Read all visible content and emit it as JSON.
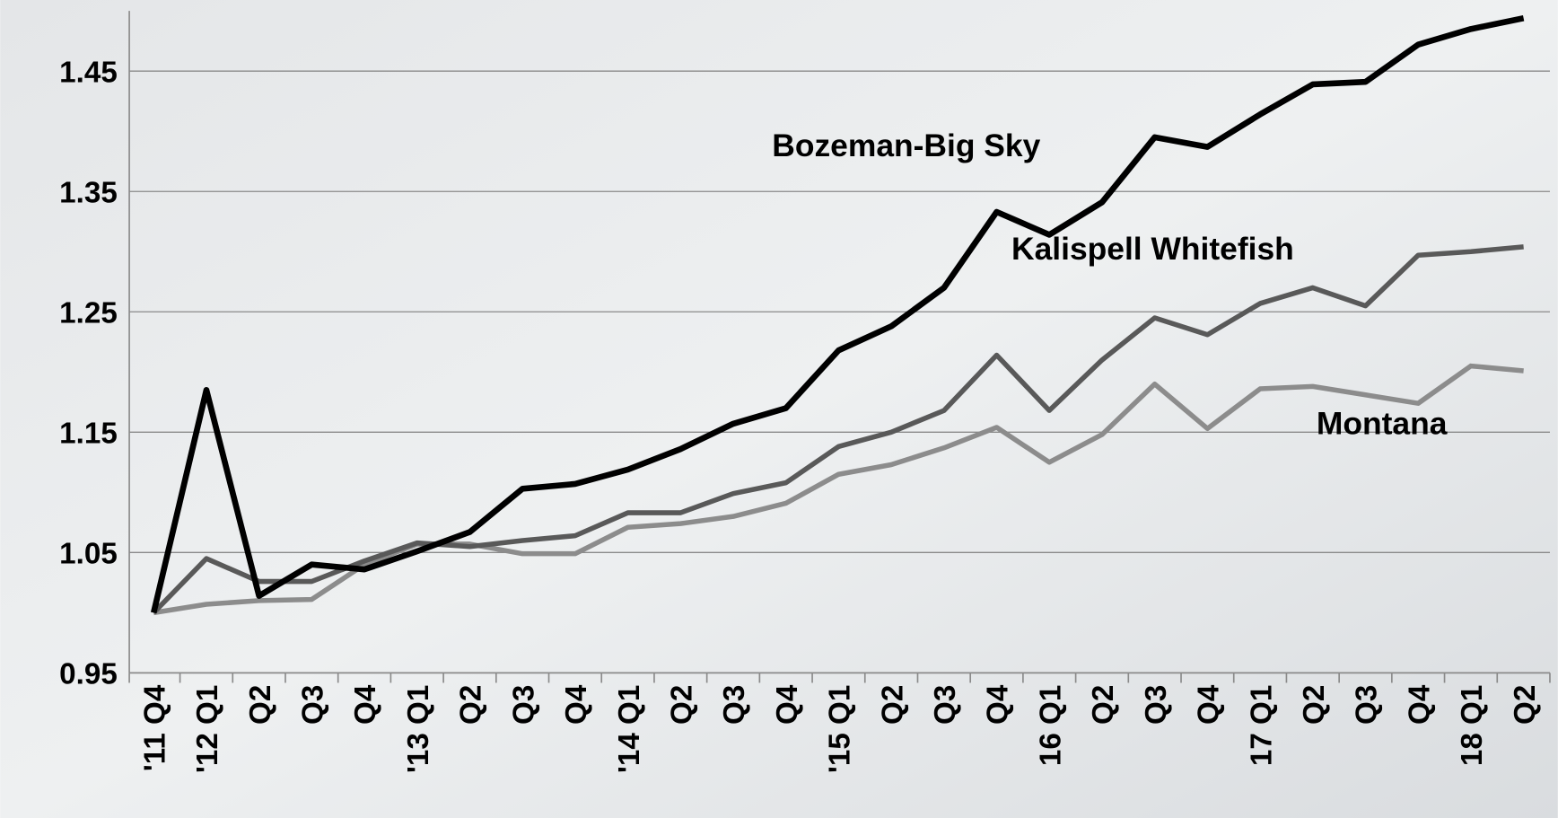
{
  "chart_data": {
    "type": "line",
    "categories": [
      "'11 Q4",
      "'12 Q1",
      "Q2",
      "Q3",
      "Q4",
      "'13 Q1",
      "Q2",
      "Q3",
      "Q4",
      "'14 Q1",
      "Q2",
      "Q3",
      "Q4",
      "'15 Q1",
      "Q2",
      "Q3",
      "Q4",
      "16 Q1",
      "Q2",
      "Q3",
      "Q4",
      "17 Q1",
      "Q2",
      "Q3",
      "Q4",
      "18 Q1",
      "Q2"
    ],
    "series": [
      {
        "name": "Bozeman-Big Sky",
        "color": "#000000",
        "values": [
          1.0,
          1.185,
          1.014,
          1.04,
          1.036,
          1.051,
          1.067,
          1.103,
          1.107,
          1.119,
          1.136,
          1.157,
          1.17,
          1.218,
          1.238,
          1.27,
          1.333,
          1.314,
          1.341,
          1.395,
          1.387,
          1.414,
          1.439,
          1.441,
          1.472,
          1.485,
          1.494
        ]
      },
      {
        "name": "Kalispell Whitefish",
        "color": "#595959",
        "values": [
          1.0,
          1.045,
          1.026,
          1.026,
          1.043,
          1.058,
          1.055,
          1.06,
          1.064,
          1.083,
          1.083,
          1.099,
          1.108,
          1.138,
          1.15,
          1.168,
          1.214,
          1.168,
          1.21,
          1.245,
          1.231,
          1.257,
          1.27,
          1.255,
          1.297,
          1.3,
          1.304
        ]
      },
      {
        "name": "Montana",
        "color": "#8c8c8c",
        "values": [
          1.0,
          1.007,
          1.01,
          1.011,
          1.04,
          1.057,
          1.057,
          1.049,
          1.049,
          1.071,
          1.074,
          1.08,
          1.091,
          1.115,
          1.123,
          1.137,
          1.154,
          1.125,
          1.148,
          1.19,
          1.153,
          1.186,
          1.188,
          1.181,
          1.174,
          1.205,
          1.201
        ]
      }
    ],
    "ylim": [
      0.95,
      1.5
    ],
    "yticks": [
      0.95,
      1.05,
      1.15,
      1.25,
      1.35,
      1.45
    ],
    "grid": true
  }
}
